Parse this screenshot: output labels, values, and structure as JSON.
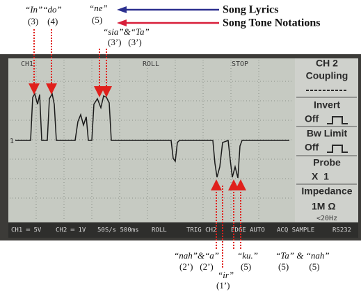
{
  "legend": {
    "lyrics": "Song Lyrics",
    "tones": "Song Tone Notations"
  },
  "annotations_top": [
    {
      "lyric": "“In”“do”",
      "tone": "(3)    (4)"
    },
    {
      "lyric": "“ne”",
      "tone": "(5)"
    },
    {
      "lyric": "“sia”&“Ta”",
      "tone": "(3’)   (3’)"
    }
  ],
  "annotations_bottom": [
    {
      "lyric": "“nah”&“a”",
      "tone": "(2’)   (2’)"
    },
    {
      "lyric": "“ku.”",
      "tone": "(5)"
    },
    {
      "lyric": "“Ta” & “nah”",
      "tone": "(5)         (5)"
    },
    {
      "lyric": "“ir”",
      "tone": "(1’)"
    }
  ],
  "screen": {
    "channel_top": "CH1",
    "mode": "ROLL",
    "state": "STOP",
    "marker": "1",
    "panel": [
      "CH 2",
      "Coupling",
      "Invert",
      "Off",
      "Bw Limit",
      "Off",
      "Probe",
      "X  1",
      "Impedance",
      "1M Ω",
      "<20Hz"
    ],
    "bottom_bar": [
      "CH1 ═ 5V",
      "CH2 ═ 1V",
      "50S/s 500ms",
      "ROLL",
      "TRIG CH2",
      "EDGE AUTO",
      "ACQ SAMPLE",
      "RS232"
    ]
  }
}
